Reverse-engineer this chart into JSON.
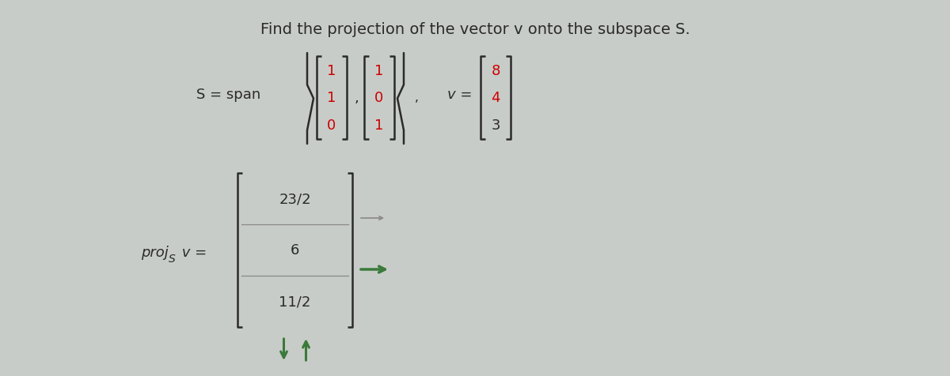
{
  "title": "Find the projection of the vector v onto the subspace S.",
  "title_fontsize": 14,
  "title_color": "#2a2a2a",
  "background_color": "#c8ccc8",
  "text_color": "#2a2a2a",
  "red_color": "#cc0000",
  "green_color": "#3a7a3a",
  "gray_color": "#888888",
  "bracket_color": "#2a2a2a",
  "vec1": [
    "1",
    "1",
    "0"
  ],
  "vec2": [
    "1",
    "0",
    "1"
  ],
  "vec_v": [
    "8",
    "4",
    "3"
  ],
  "vec_v_colors": [
    "#cc0000",
    "#cc0000",
    "#2a2a2a"
  ],
  "result_vec": [
    "23/2",
    "6",
    "11/2"
  ]
}
